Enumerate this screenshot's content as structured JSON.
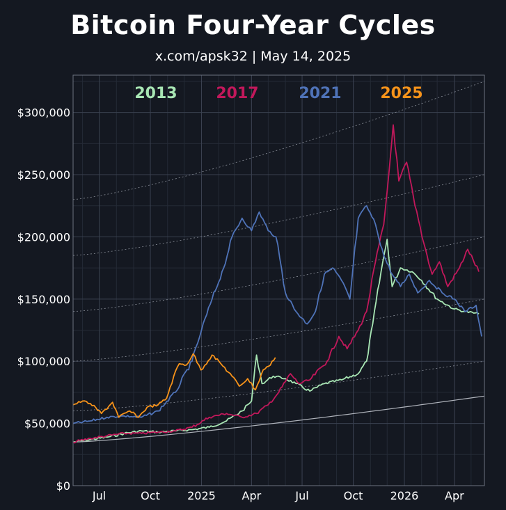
{
  "header": {
    "title": "Bitcoin Four-Year Cycles",
    "subtitle": "x.com/apsk32 | May 14, 2025"
  },
  "chart_data": {
    "type": "line",
    "title": "Bitcoin Four-Year Cycles",
    "subtitle": "x.com/apsk32 | May 14, 2025",
    "xlabel": "",
    "ylabel": "",
    "x_range": [
      "2024-05-15",
      "2026-05-25"
    ],
    "ylim": [
      0,
      330000
    ],
    "grid": true,
    "legend_placement": "top-center",
    "x_ticks": [
      {
        "date": "2024-07-01",
        "label": "Jul"
      },
      {
        "date": "2024-10-01",
        "label": "Oct"
      },
      {
        "date": "2025-01-01",
        "label": "2025"
      },
      {
        "date": "2025-04-01",
        "label": "Apr"
      },
      {
        "date": "2025-07-01",
        "label": "Jul"
      },
      {
        "date": "2025-10-01",
        "label": "Oct"
      },
      {
        "date": "2026-01-01",
        "label": "2026"
      },
      {
        "date": "2026-04-01",
        "label": "Apr"
      }
    ],
    "y_ticks": [
      {
        "value": 0,
        "label": "$0"
      },
      {
        "value": 50000,
        "label": "$50,000"
      },
      {
        "value": 100000,
        "label": "$100,000"
      },
      {
        "value": 150000,
        "label": "$150,000"
      },
      {
        "value": 200000,
        "label": "$200,000"
      },
      {
        "value": 250000,
        "label": "$250,000"
      },
      {
        "value": 300000,
        "label": "$300,000"
      }
    ],
    "series": [
      {
        "name": "2013",
        "color": "#a8e6b4",
        "points": [
          [
            "2024-05-15",
            35000
          ],
          [
            "2024-06-15",
            37000
          ],
          [
            "2024-07-15",
            39000
          ],
          [
            "2024-08-15",
            42000
          ],
          [
            "2024-09-15",
            44000
          ],
          [
            "2024-10-15",
            43000
          ],
          [
            "2024-11-15",
            44000
          ],
          [
            "2024-12-15",
            45000
          ],
          [
            "2025-01-15",
            47000
          ],
          [
            "2025-02-15",
            52000
          ],
          [
            "2025-03-15",
            60000
          ],
          [
            "2025-04-01",
            68000
          ],
          [
            "2025-04-10",
            105000
          ],
          [
            "2025-04-20",
            82000
          ],
          [
            "2025-05-10",
            88000
          ],
          [
            "2025-06-01",
            86000
          ],
          [
            "2025-06-20",
            82000
          ],
          [
            "2025-07-15",
            76000
          ],
          [
            "2025-08-10",
            82000
          ],
          [
            "2025-09-10",
            85000
          ],
          [
            "2025-10-10",
            90000
          ],
          [
            "2025-10-25",
            100000
          ],
          [
            "2025-11-05",
            130000
          ],
          [
            "2025-11-20",
            172000
          ],
          [
            "2025-12-01",
            198000
          ],
          [
            "2025-12-10",
            160000
          ],
          [
            "2025-12-25",
            175000
          ],
          [
            "2026-01-15",
            172000
          ],
          [
            "2026-02-01",
            165000
          ],
          [
            "2026-03-01",
            150000
          ],
          [
            "2026-04-01",
            142000
          ],
          [
            "2026-04-20",
            140000
          ],
          [
            "2026-05-15",
            138000
          ]
        ]
      },
      {
        "name": "2017",
        "color": "#c2185b",
        "points": [
          [
            "2024-05-15",
            35000
          ],
          [
            "2024-06-15",
            38000
          ],
          [
            "2024-07-15",
            40000
          ],
          [
            "2024-08-15",
            42000
          ],
          [
            "2024-09-15",
            42000
          ],
          [
            "2024-10-15",
            43000
          ],
          [
            "2024-11-15",
            44000
          ],
          [
            "2024-12-15",
            47000
          ],
          [
            "2025-01-15",
            55000
          ],
          [
            "2025-02-15",
            58000
          ],
          [
            "2025-03-15",
            55000
          ],
          [
            "2025-04-10",
            58000
          ],
          [
            "2025-05-01",
            65000
          ],
          [
            "2025-05-20",
            75000
          ],
          [
            "2025-06-10",
            90000
          ],
          [
            "2025-06-25",
            82000
          ],
          [
            "2025-07-15",
            85000
          ],
          [
            "2025-08-15",
            100000
          ],
          [
            "2025-09-05",
            120000
          ],
          [
            "2025-09-20",
            110000
          ],
          [
            "2025-10-10",
            125000
          ],
          [
            "2025-10-25",
            140000
          ],
          [
            "2025-11-10",
            180000
          ],
          [
            "2025-11-25",
            210000
          ],
          [
            "2025-12-05",
            255000
          ],
          [
            "2025-12-12",
            290000
          ],
          [
            "2025-12-22",
            245000
          ],
          [
            "2026-01-05",
            260000
          ],
          [
            "2026-01-20",
            225000
          ],
          [
            "2026-02-05",
            195000
          ],
          [
            "2026-02-20",
            170000
          ],
          [
            "2026-03-05",
            180000
          ],
          [
            "2026-03-20",
            160000
          ],
          [
            "2026-04-10",
            175000
          ],
          [
            "2026-04-25",
            190000
          ],
          [
            "2026-05-15",
            172000
          ]
        ]
      },
      {
        "name": "2021",
        "color": "#4f73b8",
        "points": [
          [
            "2024-05-15",
            50000
          ],
          [
            "2024-06-15",
            52000
          ],
          [
            "2024-07-15",
            55000
          ],
          [
            "2024-08-15",
            56000
          ],
          [
            "2024-09-15",
            55000
          ],
          [
            "2024-10-15",
            60000
          ],
          [
            "2024-11-15",
            75000
          ],
          [
            "2024-12-15",
            100000
          ],
          [
            "2025-01-01",
            125000
          ],
          [
            "2025-01-20",
            150000
          ],
          [
            "2025-02-10",
            175000
          ],
          [
            "2025-02-25",
            200000
          ],
          [
            "2025-03-15",
            215000
          ],
          [
            "2025-04-01",
            205000
          ],
          [
            "2025-04-15",
            220000
          ],
          [
            "2025-05-01",
            205000
          ],
          [
            "2025-05-15",
            200000
          ],
          [
            "2025-06-01",
            155000
          ],
          [
            "2025-06-20",
            140000
          ],
          [
            "2025-07-10",
            130000
          ],
          [
            "2025-07-25",
            140000
          ],
          [
            "2025-08-10",
            170000
          ],
          [
            "2025-08-25",
            175000
          ],
          [
            "2025-09-10",
            165000
          ],
          [
            "2025-09-25",
            150000
          ],
          [
            "2025-10-10",
            215000
          ],
          [
            "2025-10-25",
            225000
          ],
          [
            "2025-11-10",
            210000
          ],
          [
            "2025-11-25",
            185000
          ],
          [
            "2025-12-10",
            170000
          ],
          [
            "2025-12-25",
            160000
          ],
          [
            "2026-01-10",
            170000
          ],
          [
            "2026-01-25",
            155000
          ],
          [
            "2026-02-15",
            165000
          ],
          [
            "2026-03-10",
            155000
          ],
          [
            "2026-04-01",
            150000
          ],
          [
            "2026-04-20",
            140000
          ],
          [
            "2026-05-10",
            145000
          ],
          [
            "2026-05-20",
            120000
          ]
        ]
      },
      {
        "name": "2025",
        "color": "#f7931a",
        "points": [
          [
            "2024-05-15",
            65000
          ],
          [
            "2024-06-01",
            68000
          ],
          [
            "2024-06-15",
            66000
          ],
          [
            "2024-07-05",
            58000
          ],
          [
            "2024-07-25",
            67000
          ],
          [
            "2024-08-05",
            55000
          ],
          [
            "2024-08-25",
            60000
          ],
          [
            "2024-09-10",
            55000
          ],
          [
            "2024-09-25",
            63000
          ],
          [
            "2024-10-15",
            65000
          ],
          [
            "2024-10-30",
            70000
          ],
          [
            "2024-11-12",
            88000
          ],
          [
            "2024-11-22",
            98000
          ],
          [
            "2024-12-05",
            97000
          ],
          [
            "2024-12-17",
            106000
          ],
          [
            "2024-12-31",
            93000
          ],
          [
            "2025-01-20",
            105000
          ],
          [
            "2025-02-05",
            98000
          ],
          [
            "2025-02-25",
            88000
          ],
          [
            "2025-03-10",
            80000
          ],
          [
            "2025-03-25",
            86000
          ],
          [
            "2025-04-08",
            77000
          ],
          [
            "2025-04-22",
            93000
          ],
          [
            "2025-05-02",
            96000
          ],
          [
            "2025-05-14",
            103000
          ]
        ]
      }
    ]
  }
}
